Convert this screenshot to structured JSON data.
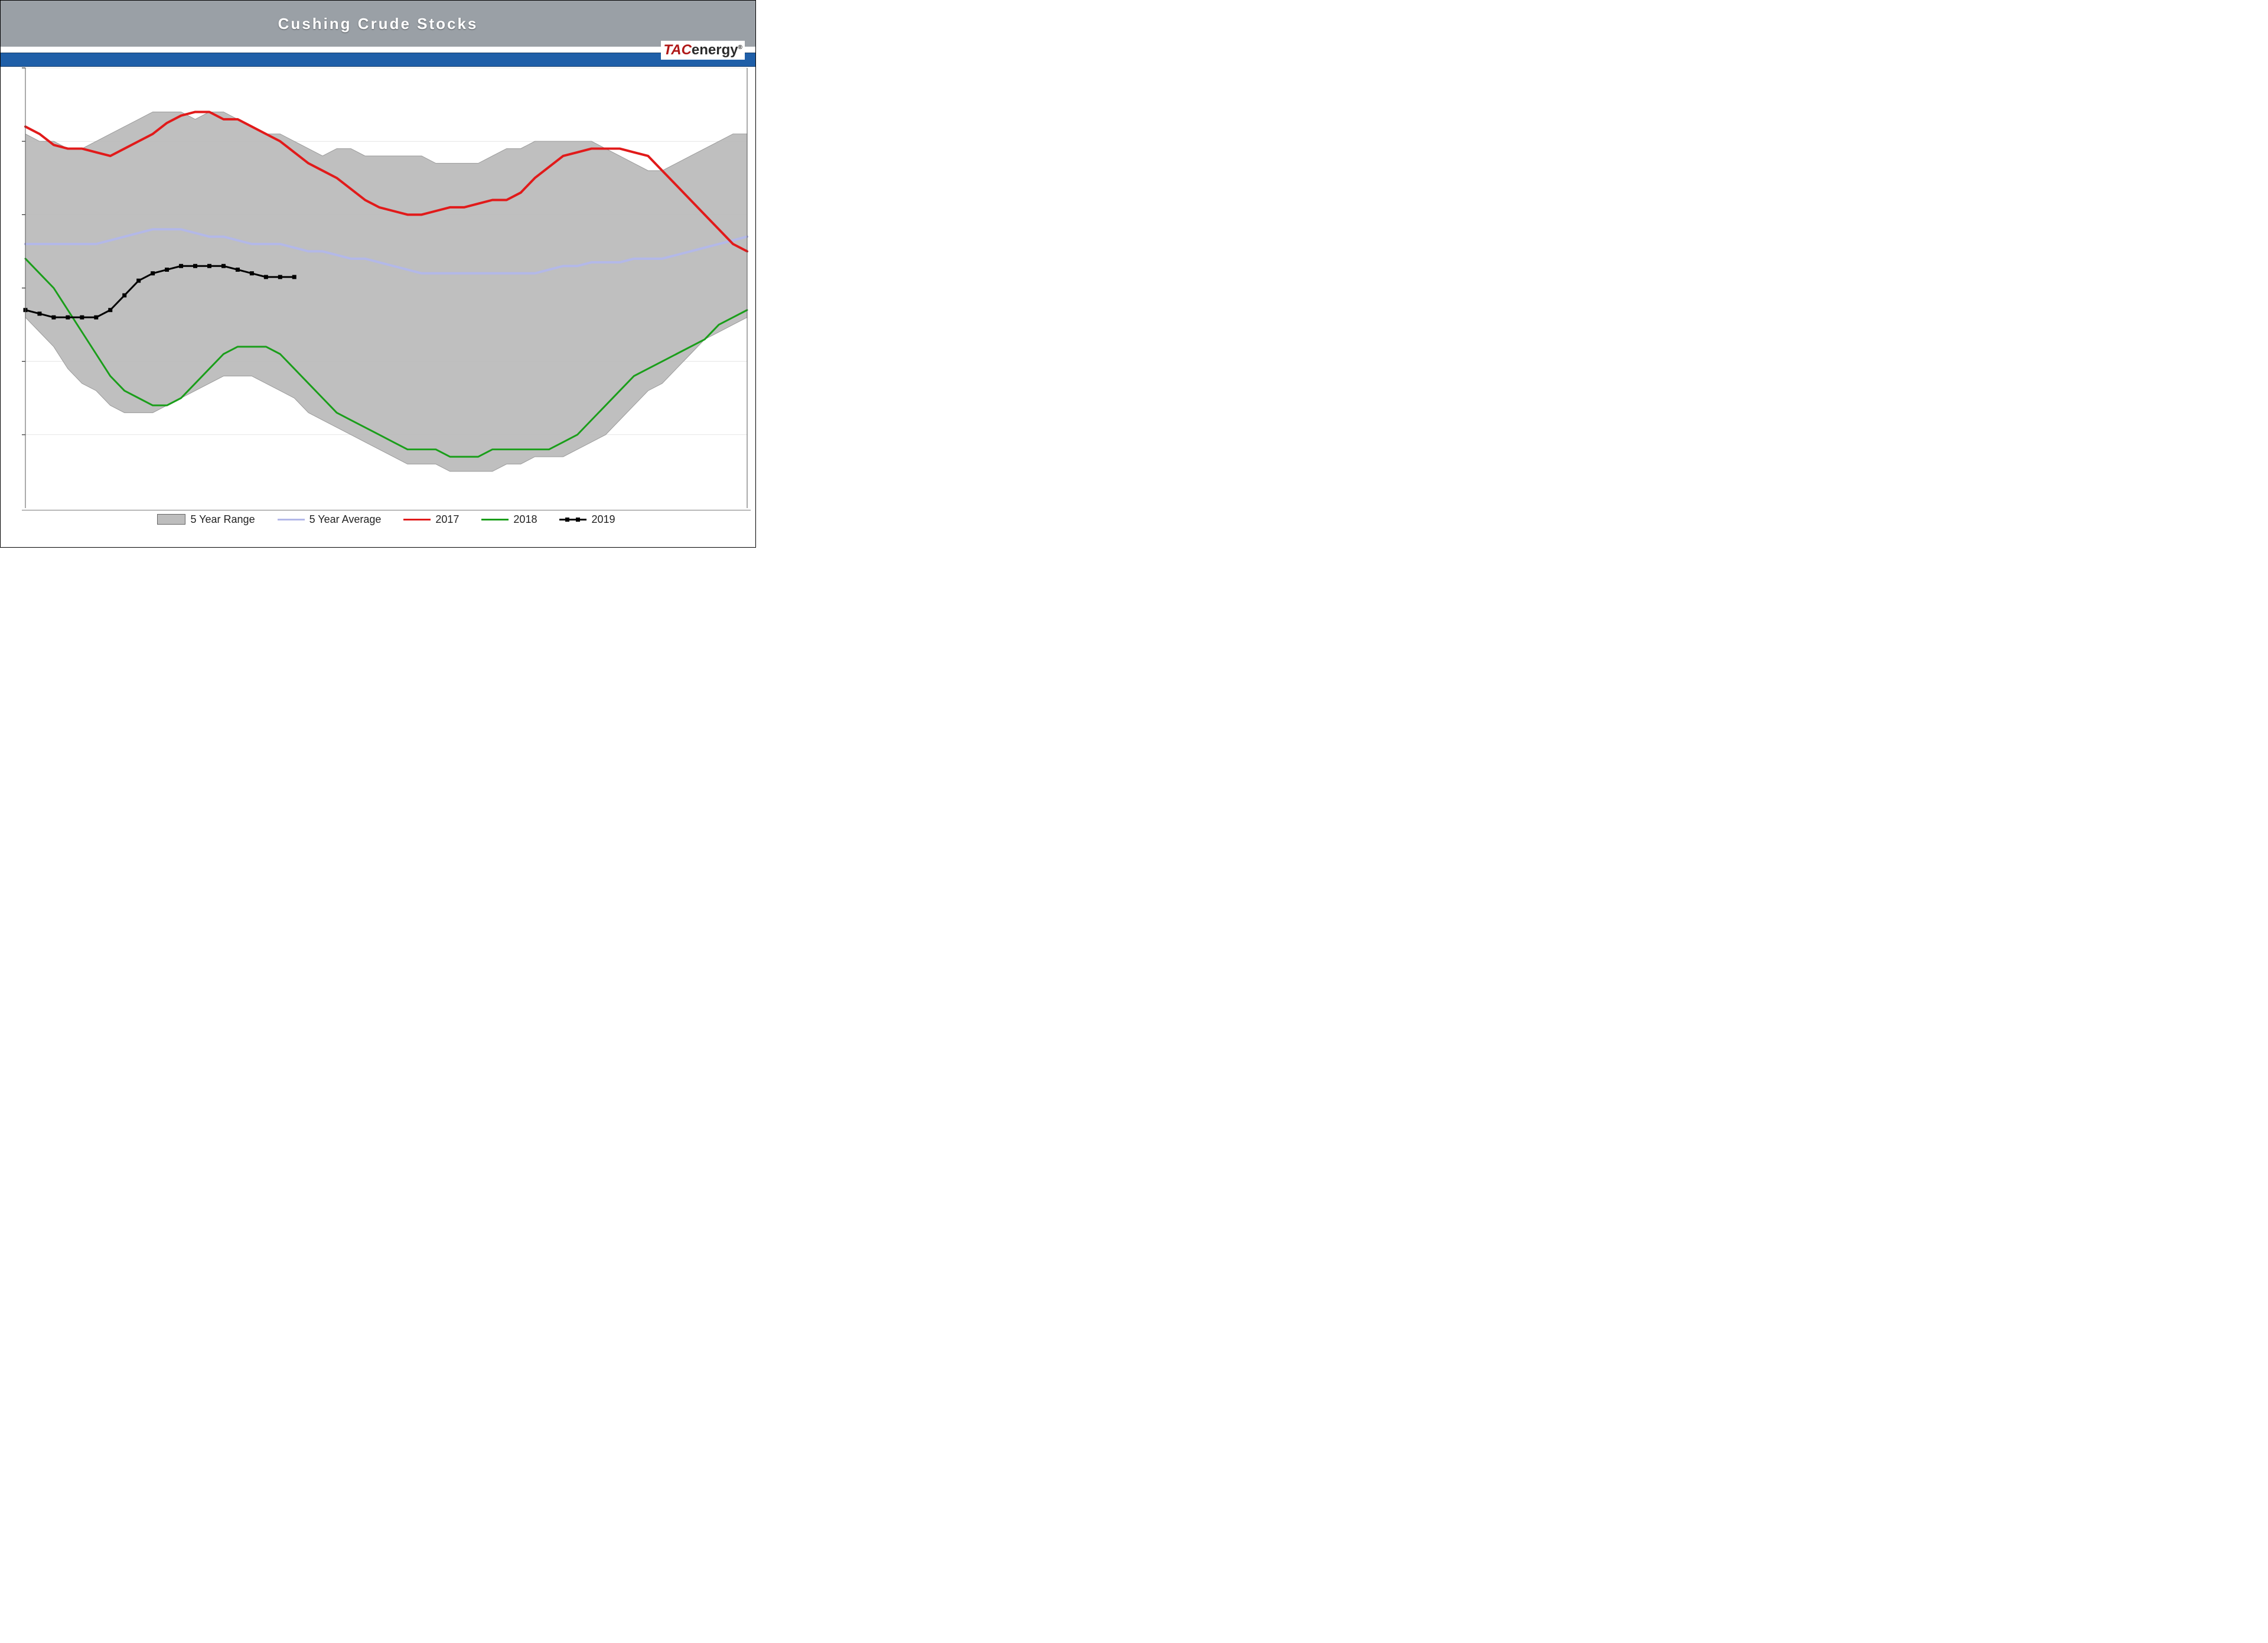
{
  "title": "Cushing Crude Stocks",
  "logo": {
    "tac": "TAC",
    "energy": "energy"
  },
  "chart": {
    "type": "line-with-band",
    "background_color": "#ffffff",
    "band_color": "#bcbcbc",
    "grid_color": "#888888",
    "title_bar_color": "#9aa0a6",
    "title_text_color": "#ffffff",
    "accent_strip_color": "#1f5fa8",
    "title_fontsize": 26,
    "legend_fontsize": 18,
    "x": {
      "min": 0,
      "max": 51,
      "ticks": []
    },
    "y": {
      "min": 15,
      "max": 75,
      "tick_step": 10,
      "ticks": [
        25,
        35,
        45,
        55,
        65,
        75
      ]
    },
    "series": {
      "range_upper": {
        "label": "5 Year Range",
        "color": "#bcbcbc",
        "line_width": 0,
        "values": [
          66,
          65,
          65,
          64,
          64,
          65,
          66,
          67,
          68,
          69,
          69,
          69,
          68,
          69,
          69,
          68,
          67,
          66,
          66,
          65,
          64,
          63,
          64,
          64,
          63,
          63,
          63,
          63,
          63,
          62,
          62,
          62,
          62,
          63,
          64,
          64,
          65,
          65,
          65,
          65,
          65,
          64,
          63,
          62,
          61,
          61,
          62,
          63,
          64,
          65,
          66,
          66
        ]
      },
      "range_lower": {
        "label": "5 Year Range",
        "color": "#bcbcbc",
        "line_width": 0,
        "values": [
          41,
          39,
          37,
          34,
          32,
          31,
          29,
          28,
          28,
          28,
          29,
          30,
          31,
          32,
          33,
          33,
          33,
          32,
          31,
          30,
          28,
          27,
          26,
          25,
          24,
          23,
          22,
          21,
          21,
          21,
          20,
          20,
          20,
          20,
          21,
          21,
          22,
          22,
          22,
          23,
          24,
          25,
          27,
          29,
          31,
          32,
          34,
          36,
          38,
          39,
          40,
          41
        ]
      },
      "avg": {
        "label": "5 Year Average",
        "color": "#b3b8e8",
        "line_width": 4,
        "values": [
          51,
          51,
          51,
          51,
          51,
          51,
          51.5,
          52,
          52.5,
          53,
          53,
          53,
          52.5,
          52,
          52,
          51.5,
          51,
          51,
          51,
          50.5,
          50,
          50,
          49.5,
          49,
          49,
          48.5,
          48,
          47.5,
          47,
          47,
          47,
          47,
          47,
          47,
          47,
          47,
          47,
          47.5,
          48,
          48,
          48.5,
          48.5,
          48.5,
          49,
          49,
          49,
          49.5,
          50,
          50.5,
          51,
          51.5,
          52
        ]
      },
      "y2017": {
        "label": "2017",
        "color": "#e11a1a",
        "line_width": 4,
        "values": [
          67,
          66,
          64.5,
          64,
          64,
          63.5,
          63,
          64,
          65,
          66,
          67.5,
          68.5,
          69,
          69,
          68,
          68,
          67,
          66,
          65,
          63.5,
          62,
          61,
          60,
          58.5,
          57,
          56,
          55.5,
          55,
          55,
          55.5,
          56,
          56,
          56.5,
          57,
          57,
          58,
          60,
          61.5,
          63,
          63.5,
          64,
          64,
          64,
          63.5,
          63,
          61,
          59,
          57,
          55,
          53,
          51,
          50
        ]
      },
      "y2018": {
        "label": "2018",
        "color": "#1a9e1a",
        "line_width": 3,
        "values": [
          49,
          47,
          45,
          42,
          39,
          36,
          33,
          31,
          30,
          29,
          29,
          30,
          32,
          34,
          36,
          37,
          37,
          37,
          36,
          34,
          32,
          30,
          28,
          27,
          26,
          25,
          24,
          23,
          23,
          23,
          22,
          22,
          22,
          23,
          23,
          23,
          23,
          23,
          24,
          25,
          27,
          29,
          31,
          33,
          34,
          35,
          36,
          37,
          38,
          40,
          41,
          42
        ]
      },
      "y2019": {
        "label": "2019",
        "color": "#000000",
        "line_width": 3,
        "marker": "square",
        "marker_size": 6,
        "values": [
          42,
          41.5,
          41,
          41,
          41,
          41,
          42,
          44,
          46,
          47,
          47.5,
          48,
          48,
          48,
          48,
          47.5,
          47,
          46.5,
          46.5,
          46.5
        ]
      }
    },
    "legend": [
      {
        "key": "range",
        "label": "5 Year Range",
        "style": "band"
      },
      {
        "key": "avg",
        "label": "5 Year Average",
        "style": "line",
        "color": "#b3b8e8"
      },
      {
        "key": "y2017",
        "label": "2017",
        "style": "line",
        "color": "#e11a1a"
      },
      {
        "key": "y2018",
        "label": "2018",
        "style": "line",
        "color": "#1a9e1a"
      },
      {
        "key": "y2019",
        "label": "2019",
        "style": "line-marker",
        "color": "#000000"
      }
    ]
  }
}
